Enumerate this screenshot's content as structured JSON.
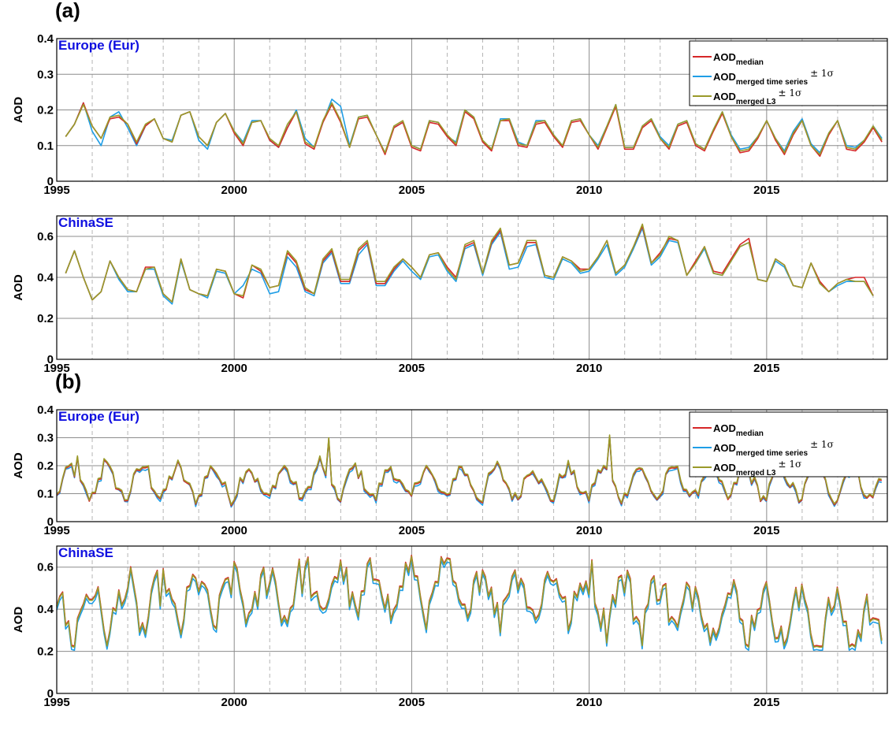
{
  "figure": {
    "panels": [
      {
        "letter": "(a)"
      },
      {
        "letter": "(b)"
      }
    ]
  },
  "legend": {
    "entries": [
      {
        "main": "AOD",
        "sub": "median",
        "suffix": "",
        "color": "#d62728"
      },
      {
        "main": "AOD",
        "sub": "merged time series",
        "suffix": "± 1σ",
        "color": "#1f9ee6"
      },
      {
        "main": "AOD",
        "sub": "merged L3",
        "suffix": "± 1σ",
        "color": "#9a9a2a"
      }
    ]
  },
  "chart_data": [
    {
      "type": "line",
      "panel": "(a)",
      "region": "Europe (Eur)",
      "ylabel": "AOD",
      "xlim": [
        1995,
        2018.4
      ],
      "ylim": [
        0,
        0.4
      ],
      "xticks": [
        "1995",
        "2000",
        "2005",
        "2010",
        "2015"
      ],
      "yticks": [
        "0",
        "0.1",
        "0.2",
        "0.3",
        "0.4"
      ],
      "legend": "top-right",
      "grid": true,
      "sampling": "seasonal",
      "x_start": 1995.25,
      "x_step": 0.25,
      "series": [
        {
          "name": "AOD median",
          "values": [
            0.125,
            0.16,
            0.22,
            0.155,
            0.12,
            0.175,
            0.18,
            0.16,
            0.105,
            0.155,
            0.175,
            0.12,
            0.11,
            0.185,
            0.195,
            0.125,
            0.1,
            0.165,
            0.19,
            0.135,
            0.1,
            0.165,
            0.17,
            0.115,
            0.095,
            0.15,
            0.195,
            0.105,
            0.09,
            0.165,
            0.215,
            0.165,
            0.095,
            0.175,
            0.18,
            0.13,
            0.075,
            0.15,
            0.165,
            0.095,
            0.085,
            0.165,
            0.16,
            0.125,
            0.1,
            0.195,
            0.175,
            0.11,
            0.085,
            0.17,
            0.17,
            0.1,
            0.095,
            0.16,
            0.165,
            0.125,
            0.095,
            0.165,
            0.17,
            0.13,
            0.09,
            0.15,
            0.21,
            0.09,
            0.09,
            0.15,
            0.17,
            0.12,
            0.09,
            0.155,
            0.165,
            0.1,
            0.085,
            0.14,
            0.19,
            0.125,
            0.08,
            0.085,
            0.12,
            0.17,
            0.115,
            0.075,
            0.13,
            0.17,
            0.1,
            0.07,
            0.13,
            0.17,
            0.09,
            0.085,
            0.11,
            0.15,
            0.11
          ]
        },
        {
          "name": "AOD merged time series ± 1σ",
          "values": [
            0.125,
            0.16,
            0.22,
            0.14,
            0.1,
            0.18,
            0.195,
            0.15,
            0.1,
            0.155,
            0.175,
            0.12,
            0.115,
            0.185,
            0.195,
            0.115,
            0.09,
            0.165,
            0.19,
            0.14,
            0.11,
            0.17,
            0.17,
            0.115,
            0.095,
            0.15,
            0.2,
            0.12,
            0.095,
            0.165,
            0.23,
            0.21,
            0.1,
            0.18,
            0.185,
            0.13,
            0.08,
            0.15,
            0.165,
            0.1,
            0.09,
            0.17,
            0.165,
            0.125,
            0.11,
            0.2,
            0.18,
            0.11,
            0.09,
            0.175,
            0.175,
            0.11,
            0.1,
            0.17,
            0.17,
            0.13,
            0.1,
            0.17,
            0.175,
            0.13,
            0.1,
            0.155,
            0.215,
            0.095,
            0.095,
            0.155,
            0.175,
            0.125,
            0.1,
            0.16,
            0.17,
            0.105,
            0.09,
            0.145,
            0.195,
            0.13,
            0.09,
            0.095,
            0.125,
            0.17,
            0.12,
            0.085,
            0.14,
            0.175,
            0.105,
            0.08,
            0.135,
            0.17,
            0.1,
            0.095,
            0.115,
            0.155,
            0.12
          ]
        },
        {
          "name": "AOD merged L3 ± 1σ",
          "values": [
            0.125,
            0.16,
            0.215,
            0.155,
            0.12,
            0.18,
            0.185,
            0.16,
            0.11,
            0.16,
            0.175,
            0.12,
            0.11,
            0.185,
            0.195,
            0.125,
            0.1,
            0.165,
            0.19,
            0.14,
            0.105,
            0.165,
            0.17,
            0.12,
            0.1,
            0.16,
            0.195,
            0.11,
            0.095,
            0.17,
            0.22,
            0.17,
            0.095,
            0.18,
            0.185,
            0.13,
            0.08,
            0.155,
            0.17,
            0.1,
            0.09,
            0.17,
            0.165,
            0.13,
            0.105,
            0.2,
            0.18,
            0.115,
            0.09,
            0.17,
            0.175,
            0.105,
            0.1,
            0.165,
            0.17,
            0.13,
            0.1,
            0.17,
            0.175,
            0.13,
            0.095,
            0.155,
            0.215,
            0.095,
            0.095,
            0.155,
            0.175,
            0.12,
            0.095,
            0.16,
            0.17,
            0.105,
            0.09,
            0.145,
            0.195,
            0.125,
            0.085,
            0.09,
            0.125,
            0.17,
            0.12,
            0.08,
            0.135,
            0.17,
            0.1,
            0.075,
            0.135,
            0.17,
            0.095,
            0.09,
            0.115,
            0.155,
            0.115
          ]
        }
      ]
    },
    {
      "type": "line",
      "panel": "(a)",
      "region": "ChinaSE",
      "ylabel": "AOD",
      "xlim": [
        1995,
        2018.4
      ],
      "ylim": [
        0,
        0.7
      ],
      "xticks": [
        "1995",
        "2000",
        "2005",
        "2010",
        "2015"
      ],
      "yticks": [
        "0",
        "0.2",
        "0.4",
        "0.6"
      ],
      "legend": "none",
      "grid": true,
      "sampling": "seasonal",
      "x_start": 1995.25,
      "x_step": 0.25,
      "series": [
        {
          "name": "AOD median",
          "values": [
            0.42,
            0.53,
            0.4,
            0.29,
            0.33,
            0.48,
            0.4,
            0.34,
            0.33,
            0.45,
            0.45,
            0.32,
            0.28,
            0.49,
            0.34,
            0.32,
            0.31,
            0.44,
            0.43,
            0.32,
            0.3,
            0.46,
            0.43,
            0.35,
            0.36,
            0.52,
            0.47,
            0.34,
            0.32,
            0.48,
            0.53,
            0.38,
            0.38,
            0.53,
            0.57,
            0.37,
            0.37,
            0.44,
            0.49,
            0.45,
            0.4,
            0.51,
            0.52,
            0.45,
            0.4,
            0.55,
            0.57,
            0.42,
            0.57,
            0.63,
            0.46,
            0.47,
            0.57,
            0.57,
            0.41,
            0.4,
            0.5,
            0.48,
            0.44,
            0.44,
            0.5,
            0.58,
            0.42,
            0.46,
            0.55,
            0.65,
            0.47,
            0.52,
            0.59,
            0.58,
            0.41,
            0.48,
            0.55,
            0.43,
            0.42,
            0.49,
            0.56,
            0.59,
            0.39,
            0.38,
            0.49,
            0.46,
            0.36,
            0.35,
            0.47,
            0.38,
            0.33,
            0.37,
            0.39,
            0.4,
            0.4,
            0.31
          ]
        },
        {
          "name": "AOD merged time series ± 1σ",
          "values": [
            0.42,
            0.53,
            0.4,
            0.29,
            0.33,
            0.48,
            0.39,
            0.33,
            0.33,
            0.44,
            0.44,
            0.31,
            0.27,
            0.48,
            0.34,
            0.32,
            0.3,
            0.43,
            0.42,
            0.32,
            0.36,
            0.44,
            0.42,
            0.32,
            0.33,
            0.5,
            0.45,
            0.33,
            0.31,
            0.47,
            0.52,
            0.37,
            0.37,
            0.51,
            0.56,
            0.36,
            0.36,
            0.43,
            0.48,
            0.43,
            0.39,
            0.5,
            0.51,
            0.43,
            0.38,
            0.54,
            0.56,
            0.41,
            0.56,
            0.62,
            0.44,
            0.45,
            0.55,
            0.56,
            0.4,
            0.39,
            0.49,
            0.47,
            0.42,
            0.43,
            0.49,
            0.56,
            0.41,
            0.45,
            0.54,
            0.64,
            0.46,
            0.5,
            0.58,
            0.57,
            0.41,
            0.47,
            0.54,
            0.42,
            0.41,
            0.48,
            0.55,
            0.57,
            0.39,
            0.38,
            0.48,
            0.45,
            0.36,
            0.35,
            0.47,
            0.37,
            0.33,
            0.36,
            0.38,
            0.38,
            0.38,
            0.31
          ]
        },
        {
          "name": "AOD merged L3 ± 1σ",
          "values": [
            0.42,
            0.53,
            0.4,
            0.29,
            0.33,
            0.48,
            0.4,
            0.34,
            0.33,
            0.44,
            0.45,
            0.32,
            0.28,
            0.49,
            0.34,
            0.32,
            0.31,
            0.44,
            0.43,
            0.32,
            0.31,
            0.46,
            0.44,
            0.35,
            0.36,
            0.53,
            0.48,
            0.35,
            0.32,
            0.49,
            0.54,
            0.39,
            0.39,
            0.54,
            0.58,
            0.38,
            0.38,
            0.45,
            0.49,
            0.45,
            0.4,
            0.51,
            0.52,
            0.44,
            0.39,
            0.56,
            0.58,
            0.42,
            0.58,
            0.64,
            0.46,
            0.47,
            0.58,
            0.58,
            0.41,
            0.4,
            0.5,
            0.48,
            0.43,
            0.44,
            0.5,
            0.58,
            0.42,
            0.46,
            0.55,
            0.66,
            0.47,
            0.51,
            0.6,
            0.58,
            0.41,
            0.47,
            0.55,
            0.42,
            0.41,
            0.48,
            0.55,
            0.57,
            0.39,
            0.38,
            0.49,
            0.46,
            0.36,
            0.35,
            0.47,
            0.37,
            0.33,
            0.37,
            0.39,
            0.38,
            0.38,
            0.31
          ]
        }
      ]
    },
    {
      "type": "line",
      "panel": "(b)",
      "region": "Europe (Eur)",
      "ylabel": "AOD",
      "xlim": [
        1995,
        2018.4
      ],
      "ylim": [
        0,
        0.4
      ],
      "xticks": [
        "1995",
        "2000",
        "2005",
        "2010",
        "2015"
      ],
      "yticks": [
        "0",
        "0.1",
        "0.2",
        "0.3",
        "0.4"
      ],
      "legend": "top-right",
      "grid": true,
      "sampling": "monthly",
      "x_start": 1995.0,
      "x_step": 0.0833,
      "seasonal_pattern": [
        0.09,
        0.12,
        0.15,
        0.17,
        0.19,
        0.2,
        0.18,
        0.16,
        0.14,
        0.12,
        0.1,
        0.085
      ],
      "series": [
        {
          "name": "AOD median",
          "values": []
        },
        {
          "name": "AOD merged time series ± 1σ",
          "values": []
        },
        {
          "name": "AOD merged L3 ± 1σ",
          "values": []
        }
      ],
      "peaks": [
        [
          1995.3,
          0.2
        ],
        [
          1995.55,
          0.235
        ],
        [
          1996.3,
          0.225
        ],
        [
          1997.6,
          0.2
        ],
        [
          1998.4,
          0.22
        ],
        [
          2002.4,
          0.235
        ],
        [
          2002.65,
          0.3
        ],
        [
          2010.6,
          0.31
        ]
      ]
    },
    {
      "type": "line",
      "panel": "(b)",
      "region": "ChinaSE",
      "ylabel": "AOD",
      "xlim": [
        1995,
        2018.4
      ],
      "ylim": [
        0,
        0.7
      ],
      "xticks": [
        "1995",
        "2000",
        "2005",
        "2010",
        "2015"
      ],
      "yticks": [
        "0",
        "0.2",
        "0.4",
        "0.6"
      ],
      "legend": "none",
      "grid": true,
      "sampling": "monthly",
      "x_start": 1995.0,
      "x_step": 0.0833,
      "series": [
        {
          "name": "AOD median",
          "values": []
        },
        {
          "name": "AOD merged time series ± 1σ",
          "values": []
        },
        {
          "name": "AOD merged L3 ± 1σ",
          "values": []
        }
      ]
    }
  ]
}
